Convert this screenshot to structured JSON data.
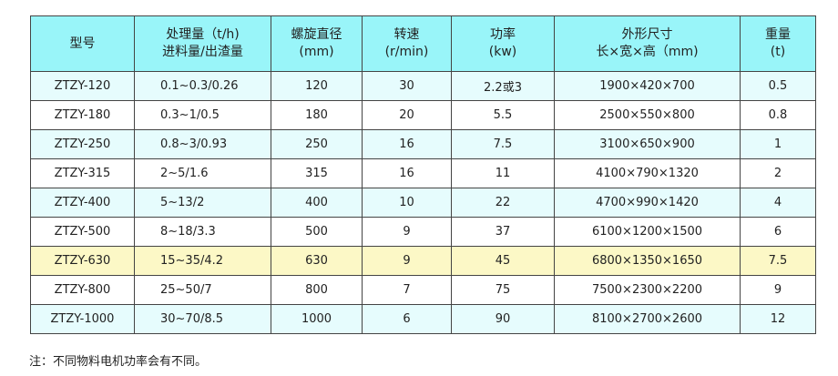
{
  "headers": [
    {
      "line1": "型号",
      "line2": ""
    },
    {
      "line1": "处理量（t/h)",
      "line2": "进料量/出渣量"
    },
    {
      "line1": "螺旋直径",
      "line2": "(mm)"
    },
    {
      "line1": "转速",
      "line2": "(r/min)"
    },
    {
      "line1": "功率",
      "line2": "(kw)"
    },
    {
      "line1": "外形尺寸",
      "line2": "长×宽×高（mm)"
    },
    {
      "line1": "重量",
      "line2": "(t)"
    }
  ],
  "rows": [
    [
      "ZTZY-120",
      "0.1~0.3/0.26",
      "120",
      "30",
      "2.2或3",
      "1900×420×700",
      "0.5"
    ],
    [
      "ZTZY-180",
      "0.3~1/0.5",
      "180",
      "20",
      "5.5",
      "2500×550×800",
      "0.8"
    ],
    [
      "ZTZY-250",
      "0.8~3/0.93",
      "250",
      "16",
      "7.5",
      "3100×650×900",
      "1"
    ],
    [
      "ZTZY-315",
      "2~5/1.6",
      "315",
      "16",
      "11",
      "4100×790×1320",
      "2"
    ],
    [
      "ZTZY-400",
      "5~13/2",
      "400",
      "10",
      "22",
      "4700×990×1420",
      "4"
    ],
    [
      "ZTZY-500",
      "8~18/3.3",
      "500",
      "9",
      "37",
      "6100×1200×1500",
      "6"
    ],
    [
      "ZTZY-630",
      "15~35/4.2",
      "630",
      "9",
      "45",
      "6800×1350×1650",
      "7.5"
    ],
    [
      "ZTZY-800",
      "25~50/7",
      "800",
      "7",
      "75",
      "7500×2300×2200",
      "9"
    ],
    [
      "ZTZY-1000",
      "30~70/8.5",
      "1000",
      "6",
      "90",
      "8100×2700×2600",
      "12"
    ]
  ],
  "highlighted_row": "ZTZY-630",
  "colors": {
    "header": "#99f5f9",
    "alt_row": "#e6fcfd",
    "highlight": "#fcf8c6"
  },
  "note": "注：不同物料电机功率会有不同。"
}
